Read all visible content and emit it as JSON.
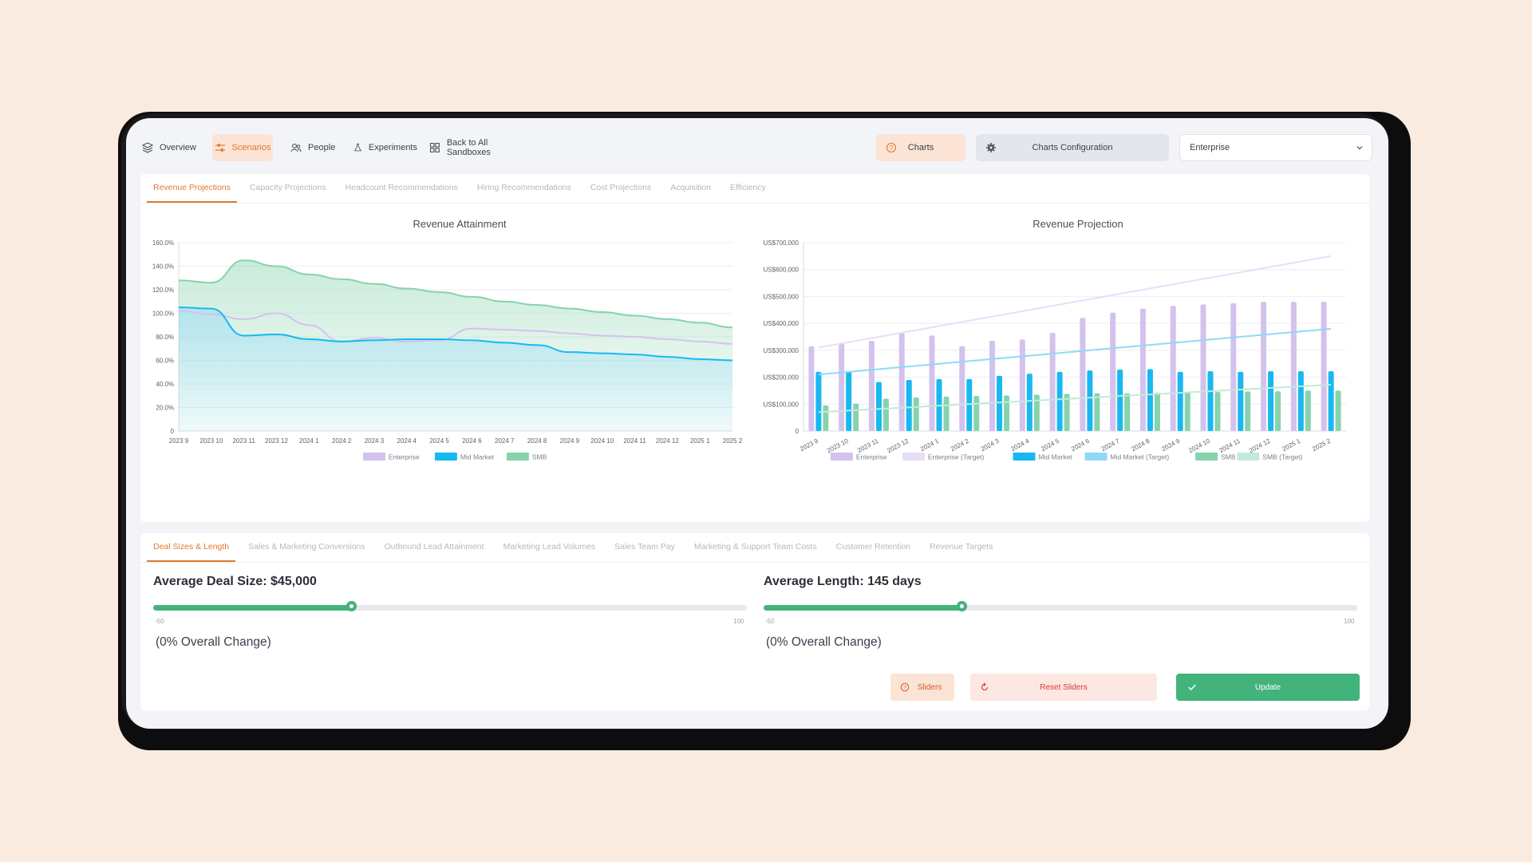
{
  "nav": {
    "items": [
      {
        "label": "Overview",
        "icon": "layers-icon",
        "active": false
      },
      {
        "label": "Scenarios",
        "icon": "sliders-icon",
        "active": true
      },
      {
        "label": "People",
        "icon": "people-icon",
        "active": false
      },
      {
        "label": "Experiments",
        "icon": "flask-icon",
        "active": false
      },
      {
        "label": "Back to All Sandboxes",
        "icon": "grid-icon",
        "active": false
      }
    ],
    "charts_label": "Charts",
    "config_label": "Charts Configuration",
    "segment_select": "Enterprise"
  },
  "top_tabs": [
    "Revenue Projections",
    "Capacity Projections",
    "Headcount Recommendations",
    "Hiring Recommendations",
    "Cost Projections",
    "Acquisition",
    "Efficiency"
  ],
  "bottom_tabs": [
    "Deal Sizes & Length",
    "Sales & Marketing Conversions",
    "Outbound Lead Attainment",
    "Marketing Lead Volumes",
    "Sales Team Pay",
    "Marketing & Support Team Costs",
    "Customer Retention",
    "Revenue Targets"
  ],
  "colors": {
    "accent": "#e0792c",
    "enterprise": "#d3c2ee",
    "enterprise_target": "#e8def6",
    "mid_market": "#19b8f0",
    "mid_market_target": "#8fd9f7",
    "smb": "#86d3ad",
    "smb_target": "#c2ead6",
    "green": "#43b37c"
  },
  "chart_data": [
    {
      "type": "area",
      "title": "Revenue Attainment",
      "xlabel": "",
      "ylabel": "",
      "categories": [
        "2023 9",
        "2023 10",
        "2023 11",
        "2023 12",
        "2024 1",
        "2024 2",
        "2024 3",
        "2024 4",
        "2024 5",
        "2024 6",
        "2024 7",
        "2024 8",
        "2024 9",
        "2024 10",
        "2024 11",
        "2024 12",
        "2025 1",
        "2025 2"
      ],
      "yticks": [
        "0",
        "20.0%",
        "40.0%",
        "60.0%",
        "80.0%",
        "100.0%",
        "120.0%",
        "140.0%",
        "160.0%"
      ],
      "ylim": [
        0,
        160
      ],
      "series": [
        {
          "name": "Enterprise",
          "values": [
            102,
            99,
            95,
            100,
            90,
            76,
            79,
            76,
            77,
            87,
            86,
            85,
            83,
            81,
            80,
            78,
            76,
            74
          ]
        },
        {
          "name": "Mid Market",
          "values": [
            105,
            104,
            81,
            82,
            78,
            76,
            77,
            78,
            78,
            77,
            75,
            73,
            67,
            66,
            65,
            63,
            61,
            60
          ]
        },
        {
          "name": "SMB",
          "values": [
            128,
            126,
            145,
            140,
            133,
            129,
            125,
            121,
            118,
            114,
            110,
            107,
            104,
            101,
            98,
            95,
            92,
            88
          ]
        }
      ],
      "legend": "bottom"
    },
    {
      "type": "bar",
      "title": "Revenue Projection",
      "xlabel": "",
      "ylabel": "",
      "categories": [
        "2023 9",
        "2023 10",
        "2023 11",
        "2023 12",
        "2024 1",
        "2024 2",
        "2024 3",
        "2024 4",
        "2024 5",
        "2024 6",
        "2024 7",
        "2024 8",
        "2024 9",
        "2024 10",
        "2024 11",
        "2024 12",
        "2025 1",
        "2025 2"
      ],
      "yticks": [
        "0",
        "US$100,000",
        "US$200,000",
        "US$300,000",
        "US$400,000",
        "US$500,000",
        "US$600,000",
        "US$700,000"
      ],
      "ylim": [
        0,
        700000
      ],
      "series": [
        {
          "name": "Enterprise",
          "values": [
            315000,
            325000,
            335000,
            365000,
            355000,
            315000,
            335000,
            340000,
            365000,
            420000,
            440000,
            455000,
            465000,
            470000,
            475000,
            480000,
            480000,
            480000
          ]
        },
        {
          "name": "Enterprise (Target)",
          "values": [
            310000,
            330000,
            350000,
            370000,
            390000,
            410000,
            430000,
            450000,
            470000,
            490000,
            510000,
            530000,
            550000,
            570000,
            590000,
            610000,
            630000,
            650000
          ]
        },
        {
          "name": "Mid Market",
          "values": [
            220000,
            222000,
            182000,
            190000,
            193000,
            193000,
            205000,
            213000,
            220000,
            225000,
            228000,
            230000,
            220000,
            222000,
            220000,
            222000,
            222000,
            222000
          ]
        },
        {
          "name": "Mid Market (Target)",
          "values": [
            210000,
            220000,
            230000,
            240000,
            250000,
            260000,
            270000,
            280000,
            290000,
            300000,
            310000,
            320000,
            330000,
            340000,
            350000,
            360000,
            370000,
            380000
          ]
        },
        {
          "name": "SMB",
          "values": [
            95000,
            102000,
            120000,
            125000,
            128000,
            130000,
            132000,
            135000,
            138000,
            140000,
            140000,
            142000,
            145000,
            145000,
            147000,
            148000,
            150000,
            150000
          ]
        },
        {
          "name": "SMB (Target)",
          "values": [
            70000,
            76000,
            82000,
            88000,
            94000,
            100000,
            106000,
            112000,
            118000,
            124000,
            130000,
            136000,
            142000,
            148000,
            154000,
            160000,
            166000,
            172000
          ]
        }
      ],
      "legend": "bottom"
    }
  ],
  "sliders": [
    {
      "title": "Average Deal Size: $45,000",
      "min": "-50",
      "max": "100",
      "fraction": 0.335,
      "change": "(0% Overall Change)"
    },
    {
      "title": "Average Length: 145 days",
      "min": "-50",
      "max": "100",
      "fraction": 0.335,
      "change": "(0% Overall Change)"
    }
  ],
  "actions": {
    "sliders": "Sliders",
    "reset": "Reset Sliders",
    "update": "Update"
  }
}
